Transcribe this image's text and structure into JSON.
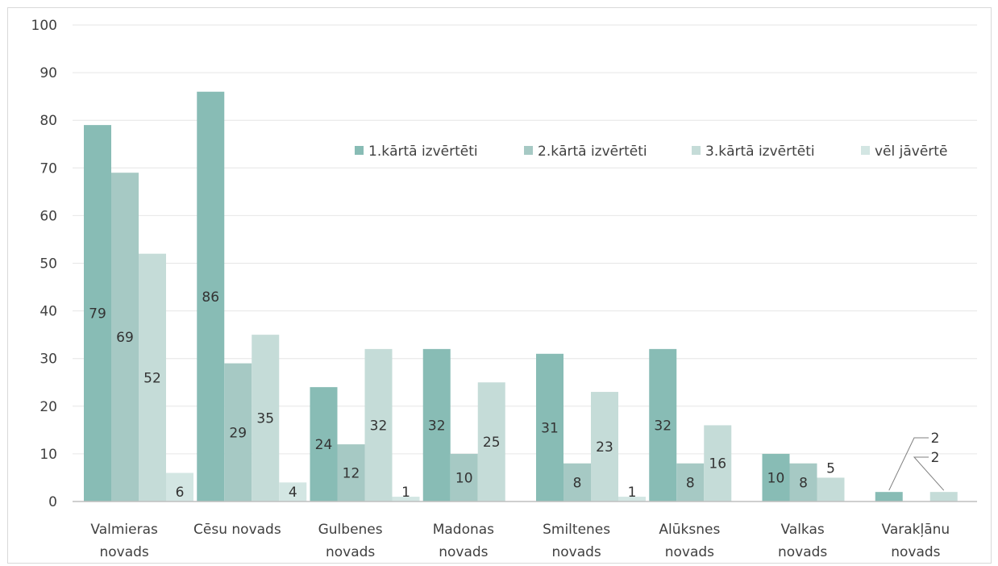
{
  "chart_data": {
    "type": "bar",
    "title": "",
    "xlabel": "",
    "ylabel": "",
    "ylim": [
      0,
      100
    ],
    "yticks": [
      0,
      10,
      20,
      30,
      40,
      50,
      60,
      70,
      80,
      90,
      100
    ],
    "grid": true,
    "legend_position": "top-right",
    "categories": [
      [
        "Valmieras",
        "novads"
      ],
      [
        "Cēsu novads"
      ],
      [
        "Gulbenes",
        "novads"
      ],
      [
        "Madonas",
        "novads"
      ],
      [
        "Smiltenes",
        "novads"
      ],
      [
        "Alūksnes",
        "novads"
      ],
      [
        "Valkas",
        "novads"
      ],
      [
        "Varakļānu",
        "novads"
      ]
    ],
    "series": [
      {
        "name": "1.kārtā izvērtēti",
        "color": "#88bcb5",
        "values": [
          79,
          86,
          24,
          32,
          31,
          32,
          10,
          2
        ]
      },
      {
        "name": "2.kārtā izvērtēti",
        "color": "#a6c9c4",
        "values": [
          69,
          29,
          12,
          10,
          8,
          8,
          8,
          null
        ]
      },
      {
        "name": "3.kārtā izvērtēti",
        "color": "#c5dcd8",
        "values": [
          52,
          35,
          32,
          25,
          23,
          16,
          5,
          2
        ]
      },
      {
        "name": "vēl jāvērtē",
        "color": "#d3e6e3",
        "values": [
          6,
          4,
          1,
          null,
          1,
          null,
          null,
          null
        ]
      }
    ]
  }
}
